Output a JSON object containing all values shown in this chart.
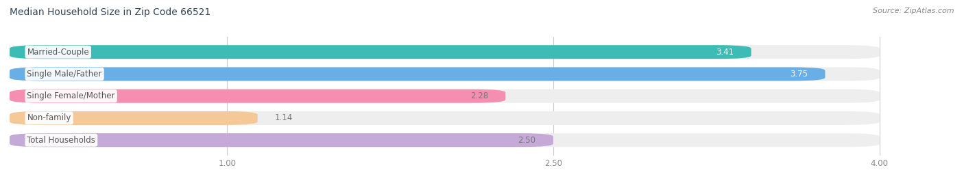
{
  "title": "Median Household Size in Zip Code 66521",
  "source": "Source: ZipAtlas.com",
  "categories": [
    "Married-Couple",
    "Single Male/Father",
    "Single Female/Mother",
    "Non-family",
    "Total Households"
  ],
  "values": [
    3.41,
    3.75,
    2.28,
    1.14,
    2.5
  ],
  "bar_colors": [
    "#3dbcb5",
    "#6aaee6",
    "#f48fb1",
    "#f5c897",
    "#c5aad8"
  ],
  "value_label_colors": [
    "white",
    "white",
    "white",
    "white",
    "white"
  ],
  "xlim": [
    0,
    4.3
  ],
  "xmin": 0,
  "xmax": 4.0,
  "xticks": [
    1.0,
    2.5,
    4.0
  ],
  "xtick_labels": [
    "1.00",
    "2.50",
    "4.00"
  ],
  "bar_height": 0.62,
  "background_color": "#ffffff",
  "bar_background_color": "#eeeeee",
  "label_fontsize": 8.5,
  "value_fontsize": 8.5,
  "title_fontsize": 10,
  "source_fontsize": 8,
  "title_color": "#334455",
  "source_color": "#888888",
  "grid_color": "#cccccc",
  "label_text_color": "#555555",
  "value_colors_long": [
    "white",
    "white",
    "#777777",
    "#777777",
    "#777777"
  ]
}
